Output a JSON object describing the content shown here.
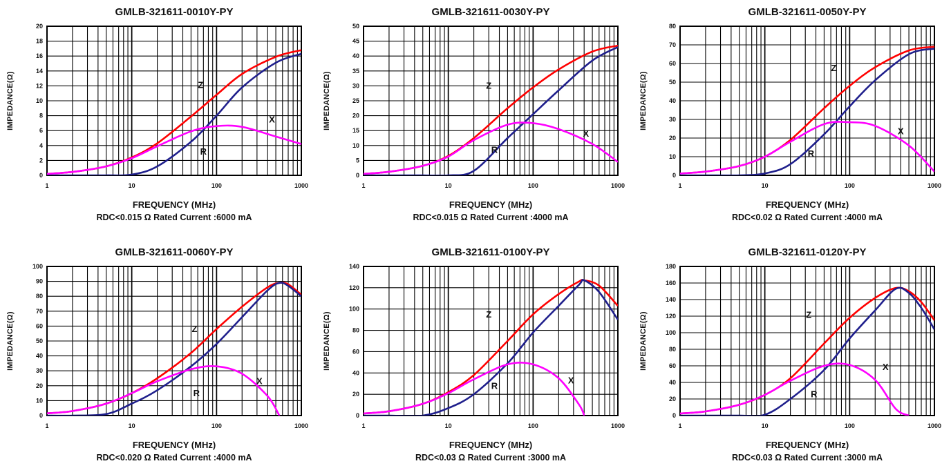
{
  "chart_data": [
    {
      "type": "line",
      "title": "GMLB-321611-0010Y-PY",
      "xlabel": "FREQUENCY (MHz)",
      "ylabel": "IMPEDANCE(Ω)",
      "note": "RDC<0.015 Ω Rated Current :6000 mA",
      "x_scale": "log",
      "xlim": [
        1,
        1000
      ],
      "ylim": [
        0,
        20
      ],
      "x_ticks": [
        "1",
        "10",
        "100",
        "1000"
      ],
      "y_ticks": [
        "0",
        "2",
        "4",
        "6",
        "8",
        "10",
        "12",
        "14",
        "16",
        "18",
        "20"
      ],
      "grid": true,
      "x": [
        1,
        2,
        5,
        10,
        20,
        50,
        100,
        200,
        500,
        1000
      ],
      "series": [
        {
          "name": "Z",
          "color": "#ff0000",
          "values": [
            0.2,
            0.45,
            1.2,
            2.4,
            4.3,
            7.9,
            10.8,
            13.6,
            15.9,
            16.8
          ]
        },
        {
          "name": "R",
          "color": "#1f1f8c",
          "values": [
            0,
            0,
            0,
            0.1,
            1.2,
            4.5,
            8.0,
            11.8,
            15.1,
            16.3
          ]
        },
        {
          "name": "X",
          "color": "#ff00ff",
          "values": [
            0.2,
            0.45,
            1.2,
            2.3,
            3.9,
            5.9,
            6.6,
            6.5,
            5.2,
            4.2
          ]
        }
      ],
      "labels": [
        {
          "text": "Z",
          "x": 65,
          "y": 11.7
        },
        {
          "text": "R",
          "x": 70,
          "y": 2.8
        },
        {
          "text": "X",
          "x": 450,
          "y": 7.1
        }
      ]
    },
    {
      "type": "line",
      "title": "GMLB-321611-0030Y-PY",
      "xlabel": "FREQUENCY (MHz)",
      "ylabel": "IMPEDANCE(Ω)",
      "note": "RDC<0.015 Ω Rated Current :4000 mA",
      "x_scale": "log",
      "xlim": [
        1,
        1000
      ],
      "ylim": [
        0,
        50
      ],
      "x_ticks": [
        "1",
        "10",
        "100",
        "1000"
      ],
      "y_ticks": [
        "0",
        "5",
        "10",
        "15",
        "20",
        "25",
        "30",
        "35",
        "40",
        "45",
        "50"
      ],
      "grid": true,
      "x": [
        1,
        2,
        5,
        10,
        20,
        50,
        100,
        200,
        500,
        1000
      ],
      "series": [
        {
          "name": "Z",
          "color": "#ff0000",
          "values": [
            0.5,
            1.2,
            3.2,
            6.5,
            12.5,
            22.5,
            29.5,
            35.5,
            41.5,
            43.5
          ]
        },
        {
          "name": "R",
          "color": "#1f1f8c",
          "values": [
            0,
            0,
            0,
            0,
            1.5,
            12.5,
            20.5,
            28.5,
            38.5,
            43.0
          ]
        },
        {
          "name": "X",
          "color": "#ff00ff",
          "values": [
            0.5,
            1.2,
            3.2,
            6.3,
            11.8,
            17.0,
            17.5,
            15.5,
            10.5,
            4.5
          ]
        }
      ],
      "labels": [
        {
          "text": "Z",
          "x": 30,
          "y": 29
        },
        {
          "text": "R",
          "x": 35,
          "y": 7.5
        },
        {
          "text": "X",
          "x": 420,
          "y": 13
        }
      ]
    },
    {
      "type": "line",
      "title": "GMLB-321611-0050Y-PY",
      "xlabel": "FREQUENCY (MHz)",
      "ylabel": "IMPEDANCE(Ω)",
      "note": "RDC<0.02 Ω Rated Current :4000 mA",
      "x_scale": "log",
      "xlim": [
        1,
        1000
      ],
      "ylim": [
        0,
        80
      ],
      "x_ticks": [
        "1",
        "10",
        "100",
        "1000"
      ],
      "y_ticks": [
        "0",
        "10",
        "20",
        "30",
        "40",
        "50",
        "60",
        "70",
        "80"
      ],
      "grid": true,
      "x": [
        1,
        2,
        5,
        10,
        20,
        50,
        100,
        200,
        500,
        1000
      ],
      "series": [
        {
          "name": "Z",
          "color": "#ff0000",
          "values": [
            1,
            2,
            5,
            10,
            19,
            36,
            48,
            58,
            67,
            69
          ]
        },
        {
          "name": "R",
          "color": "#1f1f8c",
          "values": [
            0,
            0,
            0,
            1,
            6,
            22,
            37,
            51,
            65,
            68
          ]
        },
        {
          "name": "X",
          "color": "#ff00ff",
          "values": [
            1,
            2,
            5,
            10,
            18,
            27.5,
            28.5,
            26.5,
            16,
            2
          ]
        }
      ],
      "labels": [
        {
          "text": "Z",
          "x": 65,
          "y": 56
        },
        {
          "text": "R",
          "x": 35,
          "y": 10
        },
        {
          "text": "X",
          "x": 400,
          "y": 22
        }
      ]
    },
    {
      "type": "line",
      "title": "GMLB-321611-0060Y-PY",
      "xlabel": "FREQUENCY (MHz)",
      "ylabel": "IMPEDANCE(Ω)",
      "note": "RDC<0.020 Ω Rated Current :4000 mA",
      "x_scale": "log",
      "xlim": [
        1,
        1000
      ],
      "ylim": [
        0,
        100
      ],
      "x_ticks": [
        "1",
        "10",
        "100",
        "1000"
      ],
      "y_ticks": [
        "0",
        "10",
        "20",
        "30",
        "40",
        "50",
        "60",
        "70",
        "80",
        "90",
        "100"
      ],
      "grid": true,
      "x": [
        1,
        2,
        5,
        10,
        20,
        50,
        100,
        200,
        400,
        550,
        700,
        1000
      ],
      "series": [
        {
          "name": "Z",
          "color": "#ff0000",
          "values": [
            1.5,
            3,
            8,
            15,
            25,
            42,
            58,
            73,
            86,
            89,
            88,
            81
          ]
        },
        {
          "name": "R",
          "color": "#1f1f8c",
          "values": [
            0,
            0,
            1,
            8,
            17,
            33,
            48,
            66,
            84,
            89,
            87,
            80
          ]
        },
        {
          "name": "X",
          "color": "#ff00ff",
          "values": [
            1.5,
            3,
            8,
            15,
            23,
            31,
            33,
            28,
            13,
            0,
            null,
            null
          ]
        }
      ],
      "labels": [
        {
          "text": "Z",
          "x": 55,
          "y": 56
        },
        {
          "text": "R",
          "x": 58,
          "y": 13
        },
        {
          "text": "X",
          "x": 320,
          "y": 21
        }
      ]
    },
    {
      "type": "line",
      "title": "GMLB-321611-0100Y-PY",
      "xlabel": "FREQUENCY (MHz)",
      "ylabel": "IMPEDANCE(Ω)",
      "note": "RDC<0.03 Ω Rated Current :3000 mA",
      "x_scale": "log",
      "xlim": [
        1,
        1000
      ],
      "ylim": [
        0,
        140
      ],
      "x_ticks": [
        "1",
        "10",
        "100",
        "1000"
      ],
      "y_ticks": [
        "0",
        "20",
        "40",
        "60",
        "80",
        "100",
        "120",
        "140"
      ],
      "grid": true,
      "x": [
        1,
        2,
        5,
        10,
        20,
        50,
        100,
        200,
        350,
        400,
        600,
        1000
      ],
      "series": [
        {
          "name": "Z",
          "color": "#ff0000",
          "values": [
            2,
            4,
            11,
            22,
            38,
            70,
            95,
            114,
            126,
            127,
            122,
            103
          ]
        },
        {
          "name": "R",
          "color": "#1f1f8c",
          "values": [
            0,
            0,
            0,
            7,
            20,
            49,
            78,
            103,
            123,
            127,
            116,
            90
          ]
        },
        {
          "name": "X",
          "color": "#ff00ff",
          "values": [
            2,
            4,
            11,
            21,
            34,
            48,
            48,
            35,
            10,
            0,
            null,
            null
          ]
        }
      ],
      "labels": [
        {
          "text": "Z",
          "x": 30,
          "y": 92
        },
        {
          "text": "R",
          "x": 35,
          "y": 25
        },
        {
          "text": "X",
          "x": 280,
          "y": 30
        }
      ]
    },
    {
      "type": "line",
      "title": "GMLB-321611-0120Y-PY",
      "xlabel": "FREQUENCY (MHz)",
      "ylabel": "IMPEDANCE(Ω)",
      "note": "RDC<0.03 Ω Rated Current :3000 mA",
      "x_scale": "log",
      "xlim": [
        1,
        1000
      ],
      "ylim": [
        0,
        180
      ],
      "x_ticks": [
        "1",
        "10",
        "100",
        "1000"
      ],
      "y_ticks": [
        "0",
        "20",
        "40",
        "60",
        "80",
        "100",
        "120",
        "140",
        "160",
        "180"
      ],
      "grid": true,
      "x": [
        1,
        2,
        5,
        10,
        20,
        50,
        100,
        200,
        350,
        500,
        700,
        1000
      ],
      "series": [
        {
          "name": "Z",
          "color": "#ff0000",
          "values": [
            2.5,
            5,
            13,
            25,
            45,
            87,
            118,
            142,
            154,
            150,
            137,
            115
          ]
        },
        {
          "name": "R",
          "color": "#1f1f8c",
          "values": [
            0,
            0,
            0,
            1,
            20,
            55,
            93,
            127,
            153,
            148,
            130,
            104
          ]
        },
        {
          "name": "X",
          "color": "#ff00ff",
          "values": [
            2.5,
            5,
            13,
            25,
            42,
            60,
            61,
            43,
            8,
            0,
            null,
            null
          ]
        }
      ],
      "labels": [
        {
          "text": "Z",
          "x": 33,
          "y": 118
        },
        {
          "text": "R",
          "x": 38,
          "y": 22
        },
        {
          "text": "X",
          "x": 265,
          "y": 55
        }
      ]
    }
  ]
}
